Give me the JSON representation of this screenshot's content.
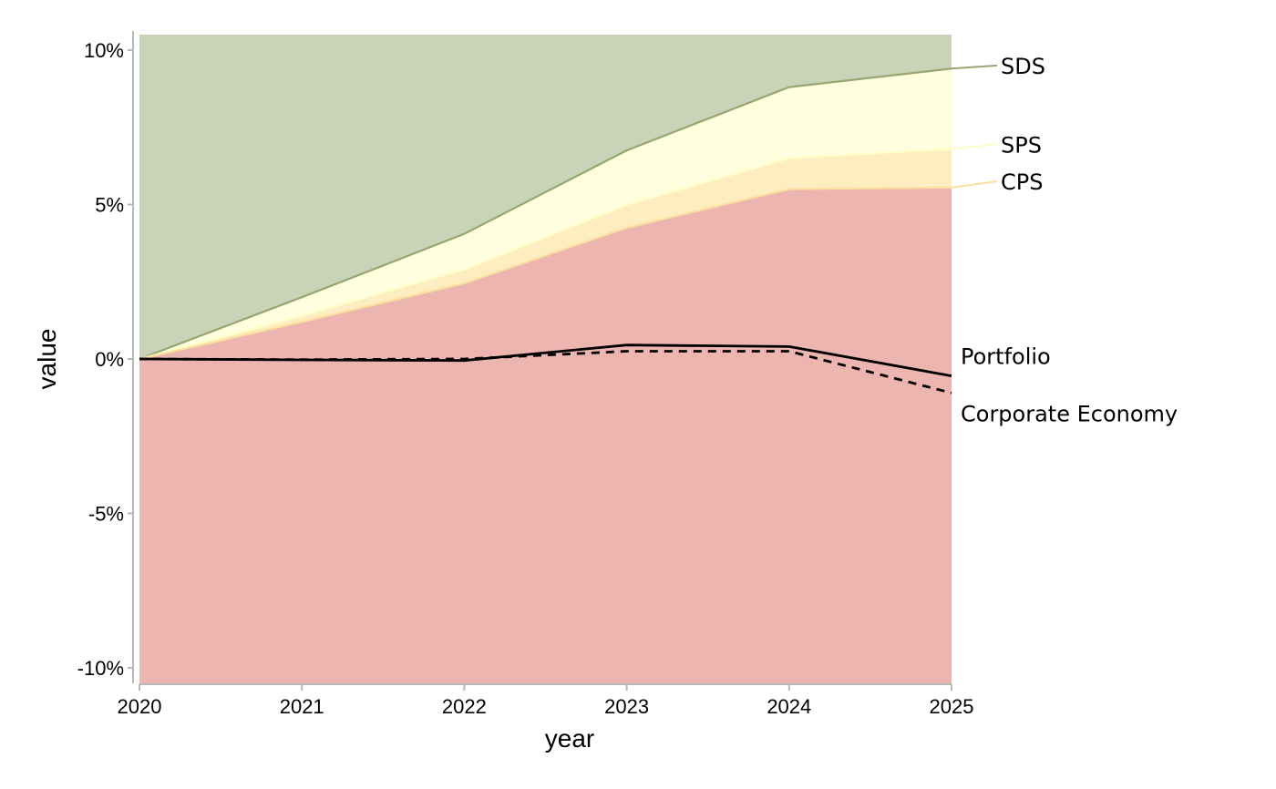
{
  "chart_data": {
    "type": "area",
    "xlabel": "year",
    "ylabel": "value",
    "x": [
      2020,
      2021,
      2022,
      2023,
      2024,
      2025
    ],
    "x_tick_labels": [
      "2020",
      "2021",
      "2022",
      "2023",
      "2024",
      "2025"
    ],
    "y_ticks": [
      0.1,
      0.05,
      0.0,
      -0.05,
      -0.1
    ],
    "y_tick_labels": [
      "10%",
      "5%",
      "0%",
      "-5%",
      "-10%"
    ],
    "ylim": [
      -0.105,
      0.105
    ],
    "xlim": [
      2020,
      2025
    ],
    "grid": false,
    "bands": [
      {
        "name": "below-CPS",
        "color": "#EDB5B0",
        "upper": "CPS"
      },
      {
        "name": "CPS-SPS",
        "color": "#FDEDC1",
        "lower": "CPS",
        "upper": "SPS"
      },
      {
        "name": "SPS-SDS",
        "color": "#FFFFE0",
        "lower": "SPS",
        "upper": "SDS"
      },
      {
        "name": "above-SDS",
        "color": "#C9D3B7",
        "lower": "SDS"
      }
    ],
    "scenarios": [
      {
        "name": "SDS",
        "color": "#98A670",
        "values": [
          0.0,
          0.02,
          0.0405,
          0.0675,
          0.088,
          0.094
        ]
      },
      {
        "name": "SPS",
        "color": "#FFFFC8",
        "values": [
          0.0,
          0.014,
          0.029,
          0.05,
          0.065,
          0.068
        ]
      },
      {
        "name": "CPS",
        "color": "#FBE0A0",
        "values": [
          0.0,
          0.012,
          0.0245,
          0.0425,
          0.055,
          0.0555
        ]
      }
    ],
    "series": [
      {
        "name": "Portfolio",
        "style": "solid",
        "color": "#000000",
        "values": [
          0.0,
          -0.0003,
          -0.0005,
          0.0045,
          0.004,
          -0.0055
        ]
      },
      {
        "name": "Corporate Economy",
        "style": "dashed",
        "color": "#000000",
        "values": [
          0.0,
          -0.0002,
          0.0,
          0.0025,
          0.0025,
          -0.011
        ]
      }
    ],
    "end_labels": [
      {
        "text": "SDS",
        "target": "SDS",
        "label_value": 0.095
      },
      {
        "text": "SPS",
        "target": "SPS",
        "label_value": 0.0695
      },
      {
        "text": "CPS",
        "target": "CPS",
        "label_value": 0.0575
      },
      {
        "text": "Portfolio",
        "target": "Portfolio",
        "label_value": 0.001
      },
      {
        "text": "Corporate Economy",
        "target": "Corporate Economy",
        "label_value": -0.0175
      }
    ]
  }
}
